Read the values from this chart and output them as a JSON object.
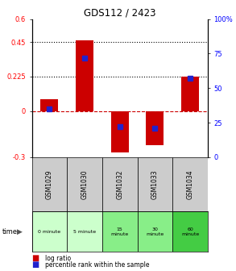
{
  "title": "GDS112 / 2423",
  "samples": [
    "GSM1029",
    "GSM1030",
    "GSM1032",
    "GSM1033",
    "GSM1034"
  ],
  "log_ratios": [
    0.08,
    0.46,
    -0.27,
    -0.22,
    0.225
  ],
  "percentile_ranks": [
    35,
    72,
    22,
    21,
    57
  ],
  "ylim_left": [
    -0.3,
    0.6
  ],
  "ylim_right": [
    0,
    100
  ],
  "left_ticks": [
    -0.3,
    0,
    0.225,
    0.45,
    0.6
  ],
  "right_ticks": [
    0,
    25,
    50,
    75,
    100
  ],
  "right_tick_labels": [
    "0",
    "25",
    "50",
    "75",
    "100%"
  ],
  "left_tick_labels": [
    "-0.3",
    "0",
    "0.225",
    "0.45",
    "0.6"
  ],
  "hlines": [
    0.45,
    0.225
  ],
  "bar_color": "#cc0000",
  "dot_color": "#2222cc",
  "zero_line_color": "#cc0000",
  "time_labels": [
    "0 minute",
    "5 minute",
    "15\nminute",
    "30\nminute",
    "60\nminute"
  ],
  "time_bg_colors": [
    "#ccffcc",
    "#ccffcc",
    "#88ee88",
    "#88ee88",
    "#44cc44"
  ],
  "sample_bg_color": "#cccccc",
  "bar_width": 0.5,
  "dot_size": 5
}
